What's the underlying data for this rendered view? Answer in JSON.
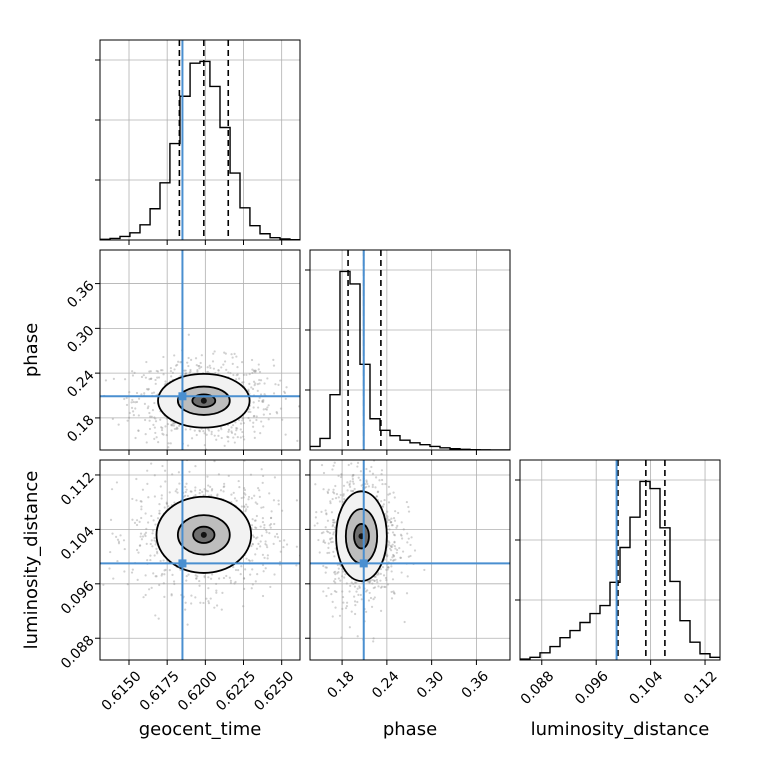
{
  "chart_data": {
    "type": "corner",
    "parameters": [
      "geocent_time",
      "phase",
      "luminosity_distance"
    ],
    "axes": {
      "geocent_time": {
        "lim": [
          0.6131,
          0.6262
        ],
        "ticks": [
          0.615,
          0.6175,
          0.62,
          0.6225,
          0.625
        ],
        "tick_labels": [
          "0.6150",
          "0.6175",
          "0.6200",
          "0.6225",
          "0.6250"
        ]
      },
      "phase": {
        "lim": [
          0.137,
          0.405
        ],
        "ticks": [
          0.18,
          0.24,
          0.3,
          0.36
        ],
        "tick_labels": [
          "0.18",
          "0.24",
          "0.30",
          "0.36"
        ]
      },
      "luminosity_distance": {
        "lim": [
          0.0848,
          0.1142
        ],
        "ticks": [
          0.088,
          0.096,
          0.104,
          0.112
        ],
        "tick_labels": [
          "0.088",
          "0.096",
          "0.104",
          "0.112"
        ]
      }
    },
    "truths": {
      "geocent_time": 0.6185,
      "phase": 0.209,
      "luminosity_distance": 0.099
    },
    "quantiles": {
      "geocent_time": [
        0.6183,
        0.6199,
        0.6215
      ],
      "phase": [
        0.188,
        0.209,
        0.232
      ],
      "luminosity_distance": [
        0.0992,
        0.1033,
        0.1061
      ]
    },
    "histograms": {
      "geocent_time": {
        "edges": [
          0.6131,
          0.61376,
          0.61441,
          0.61506,
          0.61572,
          0.61638,
          0.61703,
          0.61768,
          0.61834,
          0.619,
          0.61965,
          0.6203,
          0.62096,
          0.62162,
          0.62227,
          0.62292,
          0.62358,
          0.62424,
          0.62489,
          0.62554,
          0.6262
        ],
        "counts": [
          0.4,
          0.9,
          2.0,
          4.0,
          8.5,
          17.5,
          32.0,
          54.0,
          80.5,
          99.0,
          100.0,
          86.0,
          63.0,
          37.5,
          18.0,
          8.0,
          3.5,
          1.3,
          0.6,
          0.2
        ]
      },
      "phase": {
        "edges": [
          0.137,
          0.1504,
          0.1638,
          0.1772,
          0.1906,
          0.204,
          0.2174,
          0.2308,
          0.2442,
          0.2576,
          0.271,
          0.2844,
          0.2978,
          0.3112,
          0.3246,
          0.338,
          0.3514,
          0.3648,
          0.3782,
          0.3916,
          0.405
        ],
        "counts": [
          2.0,
          6.5,
          31.0,
          100.0,
          93.0,
          48.0,
          17.5,
          11.0,
          8.0,
          5.5,
          4.0,
          3.0,
          2.0,
          1.2,
          0.7,
          0.4,
          0.2,
          0.1,
          0.0,
          0.0
        ]
      },
      "luminosity_distance": {
        "edges": [
          0.0848,
          0.08627,
          0.08774,
          0.08921,
          0.09068,
          0.09215,
          0.09362,
          0.09509,
          0.09656,
          0.09803,
          0.0995,
          0.10097,
          0.10244,
          0.10391,
          0.10538,
          0.10685,
          0.10832,
          0.10979,
          0.11126,
          0.11273,
          0.1142
        ],
        "counts": [
          0.5,
          1.5,
          4.0,
          7.5,
          12.5,
          16.5,
          21.0,
          26.0,
          30.5,
          43.5,
          63.0,
          80.0,
          100.0,
          96.0,
          74.0,
          44.0,
          22.0,
          10.0,
          3.5,
          1.5
        ]
      }
    },
    "contours_2d": {
      "phase_vs_geocent_time": {
        "center": [
          0.6199,
          0.203
        ],
        "levels": [
          {
            "rx": 0.00075,
            "ry": 0.0085
          },
          {
            "rx": 0.0017,
            "ry": 0.019
          },
          {
            "rx": 0.003,
            "ry": 0.036
          }
        ]
      },
      "luminosity_distance_vs_geocent_time": {
        "center": [
          0.6199,
          0.1032
        ],
        "levels": [
          {
            "rx": 0.0007,
            "ry": 0.0012
          },
          {
            "rx": 0.0017,
            "ry": 0.0029
          },
          {
            "rx": 0.0031,
            "ry": 0.0056
          }
        ]
      },
      "luminosity_distance_vs_phase": {
        "center": [
          0.206,
          0.103
        ],
        "levels": [
          {
            "rx": 0.01,
            "ry": 0.0018
          },
          {
            "rx": 0.021,
            "ry": 0.004
          },
          {
            "rx": 0.034,
            "ry": 0.0066
          }
        ]
      }
    },
    "grid": true,
    "colors": {
      "truth": "#4a8fd0",
      "contour": "#000000",
      "samples": "#9a9a9a"
    }
  }
}
